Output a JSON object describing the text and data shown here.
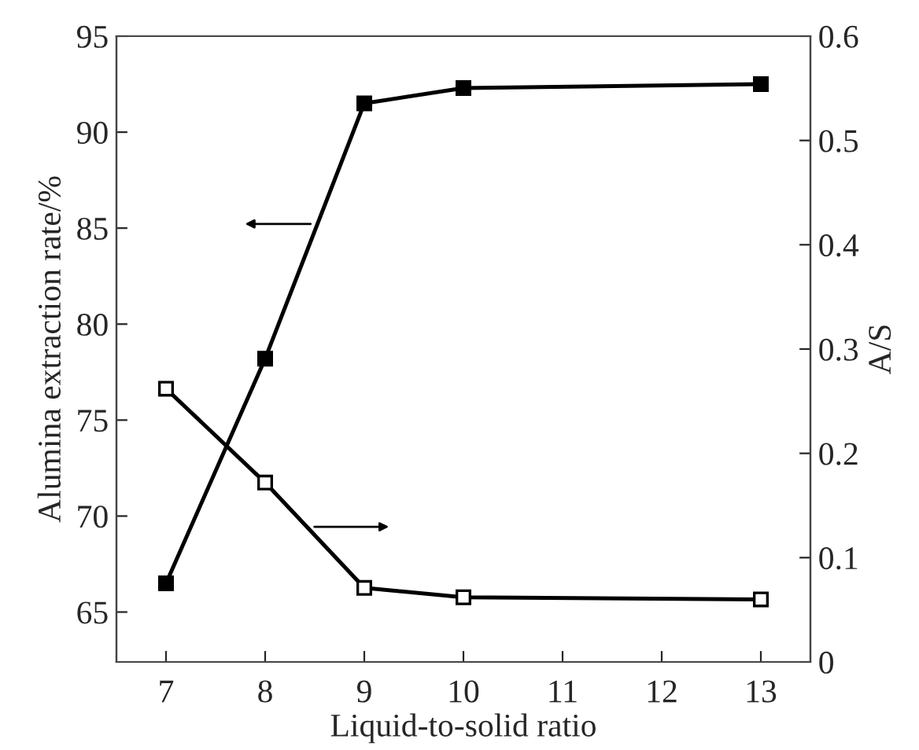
{
  "chart_data": {
    "type": "line",
    "xlabel": "Liquid-to-solid ratio",
    "ylabel": "Alumina extraction rate/%",
    "y2label": "A/S",
    "x": [
      7,
      8,
      9,
      10,
      13
    ],
    "series": [
      {
        "color": "#000000",
        "values": [
          66.5,
          78.2,
          91.5,
          92.3,
          92.5
        ]
      },
      {
        "color": "#000000",
        "axis": "y2",
        "values": [
          0.262,
          0.172,
          0.071,
          0.062,
          0.06
        ]
      }
    ],
    "xlim": [
      6.5,
      13.5
    ],
    "xticks": [
      7,
      8,
      9,
      10,
      11,
      12,
      13
    ],
    "ylim": [
      62.4,
      95
    ],
    "yticks": [
      65,
      70,
      75,
      80,
      85,
      90,
      95
    ],
    "y2lim": [
      0,
      0.6
    ],
    "y2ticks": [
      0,
      0.1,
      0.2,
      0.3,
      0.4,
      0.5,
      0.6
    ],
    "marker": "square",
    "line_style": "solid",
    "grid": false,
    "legend": false
  }
}
